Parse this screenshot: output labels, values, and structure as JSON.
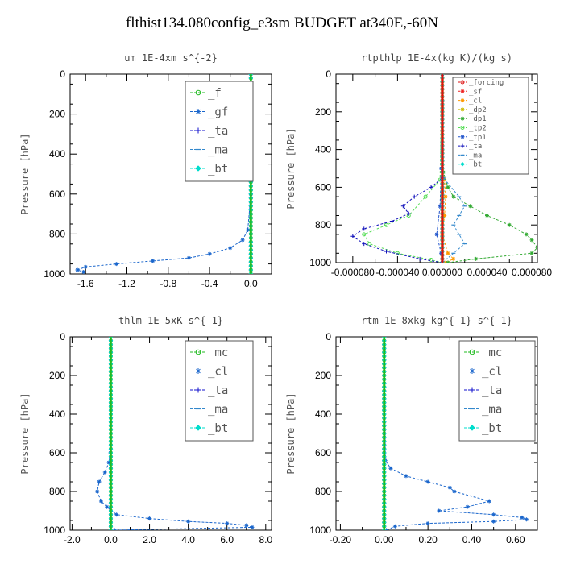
{
  "title": "flthist134.080config_e3sm  BUDGET at340E,-60N",
  "chart_data": [
    {
      "type": "line",
      "title": "um  1E-4xm s^{-2}",
      "ylabel": "Pressure [hPa]",
      "xlim": [
        -1.75,
        0.2
      ],
      "ylim": [
        1000,
        0
      ],
      "xticks": [
        "-1.6",
        "-1.2",
        "-0.8",
        "-0.4",
        "0.0"
      ],
      "xtick_values": [
        -1.6,
        -1.2,
        -0.8,
        -0.4,
        0.0
      ],
      "yticks": [
        "0",
        "200",
        "400",
        "600",
        "800",
        "1000"
      ],
      "legend_size": "large",
      "series": [
        {
          "name": "_f",
          "color": "#22bb22",
          "marker": "circle",
          "x": [
            0,
            0,
            0,
            0,
            0,
            0,
            0,
            0,
            0,
            0,
            0
          ],
          "y": [
            0,
            100,
            200,
            300,
            400,
            500,
            600,
            700,
            800,
            900,
            1000
          ]
        },
        {
          "name": "_gf",
          "color": "#1a66cc",
          "marker": "star",
          "x": [
            0,
            0,
            0,
            -0.03,
            -0.08,
            -0.2,
            -0.4,
            -0.6,
            -0.95,
            -1.3,
            -1.6,
            -1.68,
            -1.62
          ],
          "y": [
            0,
            300,
            600,
            780,
            830,
            870,
            900,
            920,
            935,
            950,
            965,
            980,
            990
          ]
        },
        {
          "name": "_ta",
          "color": "#1111cc",
          "marker": "plus",
          "x": [
            0,
            0,
            0,
            0
          ],
          "y": [
            0,
            400,
            800,
            1000
          ]
        },
        {
          "name": "_ma",
          "color": "#3388cc",
          "marker": "dash",
          "x": [
            0,
            0,
            0
          ],
          "y": [
            0,
            500,
            1000
          ]
        },
        {
          "name": "_bt",
          "color": "#00ddcc",
          "marker": "diamond",
          "x": [
            0,
            0,
            0,
            0,
            0,
            0,
            0,
            0,
            0,
            0,
            0
          ],
          "y": [
            0,
            100,
            200,
            300,
            400,
            500,
            600,
            700,
            800,
            900,
            1000
          ]
        }
      ]
    },
    {
      "type": "line",
      "title": "rtpthlp  1E-4x(kg K)/(kg s)",
      "ylabel": "Pressure [hPa]",
      "xlim": [
        -9.5e-05,
        8.5e-05
      ],
      "ylim": [
        1000,
        0
      ],
      "xticks": [
        "-0.000080",
        "-0.000040",
        "0.000000",
        "0.000040",
        "0.000080"
      ],
      "xtick_values": [
        -8e-05,
        -4e-05,
        0.0,
        4e-05,
        8e-05
      ],
      "yticks": [
        "0",
        "200",
        "400",
        "600",
        "800",
        "1000"
      ],
      "legend_size": "small",
      "series": [
        {
          "name": "_forcing",
          "color": "#dd1111",
          "marker": "circle",
          "x": [
            0,
            0,
            0,
            0,
            0,
            0,
            0,
            0,
            0,
            0,
            0
          ],
          "y": [
            0,
            100,
            200,
            300,
            400,
            500,
            600,
            700,
            800,
            900,
            1000
          ]
        },
        {
          "name": "_sf",
          "color": "#ee2222",
          "marker": "star",
          "x": [
            0,
            0,
            0
          ],
          "y": [
            0,
            500,
            1000
          ]
        },
        {
          "name": "_cl",
          "color": "#ff9900",
          "marker": "star",
          "x": [
            0,
            0,
            2e-06,
            3e-06,
            2e-06,
            0,
            5e-06,
            1e-05,
            3e-06
          ],
          "y": [
            0,
            500,
            560,
            650,
            750,
            850,
            950,
            980,
            1000
          ]
        },
        {
          "name": "_dp2",
          "color": "#ccbb00",
          "marker": "star",
          "x": [
            0,
            0,
            0
          ],
          "y": [
            0,
            500,
            1000
          ]
        },
        {
          "name": "_dp1",
          "color": "#33aa33",
          "marker": "star",
          "x": [
            0,
            1e-06,
            5e-06,
            1e-05,
            2.5e-05,
            4e-05,
            6e-05,
            7.5e-05,
            8e-05,
            8.5e-05,
            8e-05,
            3e-05,
            5e-06
          ],
          "y": [
            0,
            520,
            600,
            650,
            700,
            750,
            800,
            850,
            880,
            920,
            950,
            980,
            1000
          ]
        },
        {
          "name": "_tp2",
          "color": "#55dd55",
          "marker": "circle",
          "x": [
            0,
            -2e-06,
            -1.5e-05,
            -3e-05,
            -5e-05,
            -7e-05,
            -6.5e-05,
            -4e-05,
            -1e-05,
            0
          ],
          "y": [
            0,
            560,
            650,
            750,
            800,
            850,
            900,
            950,
            985,
            1000
          ]
        },
        {
          "name": "_tp1",
          "color": "#2255cc",
          "marker": "star",
          "x": [
            0,
            -1e-06,
            -2e-06,
            -5e-06,
            -1e-06,
            0
          ],
          "y": [
            0,
            500,
            700,
            850,
            950,
            1000
          ]
        },
        {
          "name": "_ta",
          "color": "#1111bb",
          "marker": "plus",
          "x": [
            0,
            0,
            -1e-05,
            -2.5e-05,
            -3.5e-05,
            -3e-05,
            -4.5e-05,
            -7e-05,
            -8e-05,
            -7e-05,
            -5e-05,
            -2e-05,
            0
          ],
          "y": [
            0,
            550,
            600,
            650,
            700,
            740,
            780,
            820,
            860,
            900,
            940,
            980,
            1000
          ]
        },
        {
          "name": "_ma",
          "color": "#3388cc",
          "marker": "dash",
          "x": [
            0,
            1e-06,
            1.5e-05,
            2e-05,
            1.5e-05,
            1e-05,
            1.5e-05,
            2e-05,
            1e-05,
            0
          ],
          "y": [
            0,
            550,
            650,
            700,
            750,
            800,
            850,
            900,
            950,
            1000
          ]
        },
        {
          "name": "_bt",
          "color": "#00ddcc",
          "marker": "diamond",
          "x": [
            0,
            0,
            0,
            0,
            0
          ],
          "y": [
            0,
            250,
            500,
            750,
            1000
          ]
        }
      ]
    },
    {
      "type": "line",
      "title": "thlm  1E-5xK s^{-1}",
      "ylabel": "Pressure [hPa]",
      "xlim": [
        -2.1,
        8.3
      ],
      "ylim": [
        1000,
        0
      ],
      "xticks": [
        "-2.0",
        "0.0",
        "2.0",
        "4.0",
        "6.0",
        "8.0"
      ],
      "xtick_values": [
        -2.0,
        0.0,
        2.0,
        4.0,
        6.0,
        8.0
      ],
      "yticks": [
        "0",
        "200",
        "400",
        "600",
        "800",
        "1000"
      ],
      "legend_size": "large",
      "series": [
        {
          "name": "_mc",
          "color": "#22bb22",
          "marker": "circle",
          "x": [
            0,
            0,
            0,
            0,
            0,
            0,
            0,
            0,
            0,
            0,
            0
          ],
          "y": [
            0,
            100,
            200,
            300,
            400,
            500,
            600,
            700,
            800,
            900,
            1000
          ]
        },
        {
          "name": "_cl",
          "color": "#1a66cc",
          "marker": "star",
          "x": [
            0,
            -0.02,
            -0.1,
            -0.3,
            -0.6,
            -0.7,
            -0.5,
            -0.2,
            0.3,
            2.0,
            4.0,
            6.0,
            7.0,
            7.3,
            0.2
          ],
          "y": [
            0,
            600,
            650,
            700,
            750,
            800,
            850,
            880,
            920,
            940,
            955,
            965,
            975,
            985,
            1000
          ]
        },
        {
          "name": "_ta",
          "color": "#1111cc",
          "marker": "plus",
          "x": [
            0,
            0,
            0,
            0
          ],
          "y": [
            0,
            400,
            800,
            1000
          ]
        },
        {
          "name": "_ma",
          "color": "#3388cc",
          "marker": "dash",
          "x": [
            0,
            0,
            0
          ],
          "y": [
            0,
            500,
            1000
          ]
        },
        {
          "name": "_bt",
          "color": "#00ddcc",
          "marker": "diamond",
          "x": [
            0,
            0,
            0,
            0,
            0,
            0,
            0,
            0,
            0,
            0,
            0
          ],
          "y": [
            0,
            100,
            200,
            300,
            400,
            500,
            600,
            700,
            800,
            900,
            1000
          ]
        }
      ]
    },
    {
      "type": "line",
      "title": "rtm  1E-8xkg kg^{-1} s^{-1}",
      "ylabel": "Pressure [hPa]",
      "xlim": [
        -0.22,
        0.7
      ],
      "ylim": [
        1000,
        0
      ],
      "xticks": [
        "-0.20",
        "0.00",
        "0.20",
        "0.40",
        "0.60"
      ],
      "xtick_values": [
        -0.2,
        0.0,
        0.2,
        0.4,
        0.6
      ],
      "yticks": [
        "0",
        "200",
        "400",
        "600",
        "800",
        "1000"
      ],
      "legend_size": "large",
      "series": [
        {
          "name": "_mc",
          "color": "#22bb22",
          "marker": "circle",
          "x": [
            0,
            0,
            0,
            0,
            0,
            0,
            0,
            0,
            0,
            0,
            0
          ],
          "y": [
            0,
            100,
            200,
            300,
            400,
            500,
            600,
            700,
            800,
            900,
            1000
          ]
        },
        {
          "name": "_cl",
          "color": "#1a66cc",
          "marker": "star",
          "x": [
            0,
            0.005,
            0.03,
            0.1,
            0.2,
            0.3,
            0.32,
            0.48,
            0.38,
            0.25,
            0.5,
            0.63,
            0.65,
            0.5,
            0.2,
            0.05,
            0.01
          ],
          "y": [
            0,
            640,
            680,
            720,
            750,
            780,
            800,
            850,
            880,
            900,
            920,
            935,
            945,
            955,
            965,
            980,
            1000
          ]
        },
        {
          "name": "_ta",
          "color": "#1111cc",
          "marker": "plus",
          "x": [
            0,
            0,
            0,
            0
          ],
          "y": [
            0,
            400,
            800,
            1000
          ]
        },
        {
          "name": "_ma",
          "color": "#3388cc",
          "marker": "dash",
          "x": [
            0,
            0,
            0
          ],
          "y": [
            0,
            500,
            1000
          ]
        },
        {
          "name": "_bt",
          "color": "#00ddcc",
          "marker": "diamond",
          "x": [
            0,
            0,
            0,
            0,
            0,
            0,
            0,
            0,
            0,
            0,
            0
          ],
          "y": [
            0,
            100,
            200,
            300,
            400,
            500,
            600,
            700,
            800,
            900,
            1000
          ]
        }
      ]
    }
  ]
}
